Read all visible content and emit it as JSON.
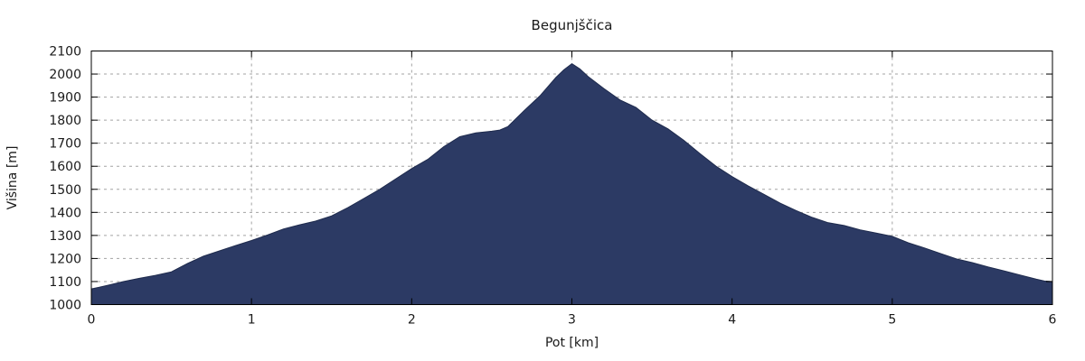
{
  "chart_data": {
    "type": "area",
    "title": "Begunjščica",
    "xlabel": "Pot [km]",
    "ylabel": "Višina [m]",
    "xlim": [
      0,
      6
    ],
    "ylim": [
      1000,
      2100
    ],
    "x_ticks": [
      0,
      1,
      2,
      3,
      4,
      5,
      6
    ],
    "y_ticks": [
      1000,
      1100,
      1200,
      1300,
      1400,
      1500,
      1600,
      1700,
      1800,
      1900,
      2000,
      2100
    ],
    "grid": true,
    "legend_position": "none",
    "series": [
      {
        "name": "Višina",
        "points": [
          [
            0.0,
            1068
          ],
          [
            0.05,
            1075
          ],
          [
            0.1,
            1083
          ],
          [
            0.2,
            1100
          ],
          [
            0.3,
            1114
          ],
          [
            0.4,
            1127
          ],
          [
            0.5,
            1142
          ],
          [
            0.6,
            1178
          ],
          [
            0.7,
            1210
          ],
          [
            0.8,
            1233
          ],
          [
            0.9,
            1256
          ],
          [
            1.0,
            1278
          ],
          [
            1.1,
            1302
          ],
          [
            1.2,
            1328
          ],
          [
            1.3,
            1346
          ],
          [
            1.4,
            1362
          ],
          [
            1.5,
            1385
          ],
          [
            1.6,
            1420
          ],
          [
            1.7,
            1460
          ],
          [
            1.8,
            1500
          ],
          [
            1.9,
            1545
          ],
          [
            2.0,
            1590
          ],
          [
            2.1,
            1630
          ],
          [
            2.2,
            1685
          ],
          [
            2.3,
            1728
          ],
          [
            2.4,
            1745
          ],
          [
            2.5,
            1752
          ],
          [
            2.55,
            1757
          ],
          [
            2.6,
            1772
          ],
          [
            2.7,
            1840
          ],
          [
            2.8,
            1905
          ],
          [
            2.9,
            1985
          ],
          [
            2.95,
            2018
          ],
          [
            3.0,
            2045
          ],
          [
            3.05,
            2022
          ],
          [
            3.1,
            1990
          ],
          [
            3.2,
            1937
          ],
          [
            3.3,
            1888
          ],
          [
            3.4,
            1855
          ],
          [
            3.5,
            1800
          ],
          [
            3.6,
            1762
          ],
          [
            3.7,
            1712
          ],
          [
            3.8,
            1655
          ],
          [
            3.9,
            1600
          ],
          [
            4.0,
            1555
          ],
          [
            4.1,
            1515
          ],
          [
            4.2,
            1478
          ],
          [
            4.3,
            1440
          ],
          [
            4.4,
            1408
          ],
          [
            4.5,
            1378
          ],
          [
            4.6,
            1355
          ],
          [
            4.7,
            1343
          ],
          [
            4.8,
            1324
          ],
          [
            4.9,
            1310
          ],
          [
            5.0,
            1296
          ],
          [
            5.1,
            1268
          ],
          [
            5.2,
            1246
          ],
          [
            5.3,
            1222
          ],
          [
            5.4,
            1198
          ],
          [
            5.5,
            1182
          ],
          [
            5.6,
            1163
          ],
          [
            5.7,
            1146
          ],
          [
            5.8,
            1128
          ],
          [
            5.9,
            1110
          ],
          [
            5.95,
            1102
          ],
          [
            6.0,
            1100
          ]
        ]
      }
    ],
    "colors": {
      "fill": "#2c3a64",
      "stroke": "#1f2b4d",
      "grid": "#a3a3a3",
      "axis": "#000000",
      "text": "#1a1a1a",
      "background": "#ffffff"
    }
  }
}
